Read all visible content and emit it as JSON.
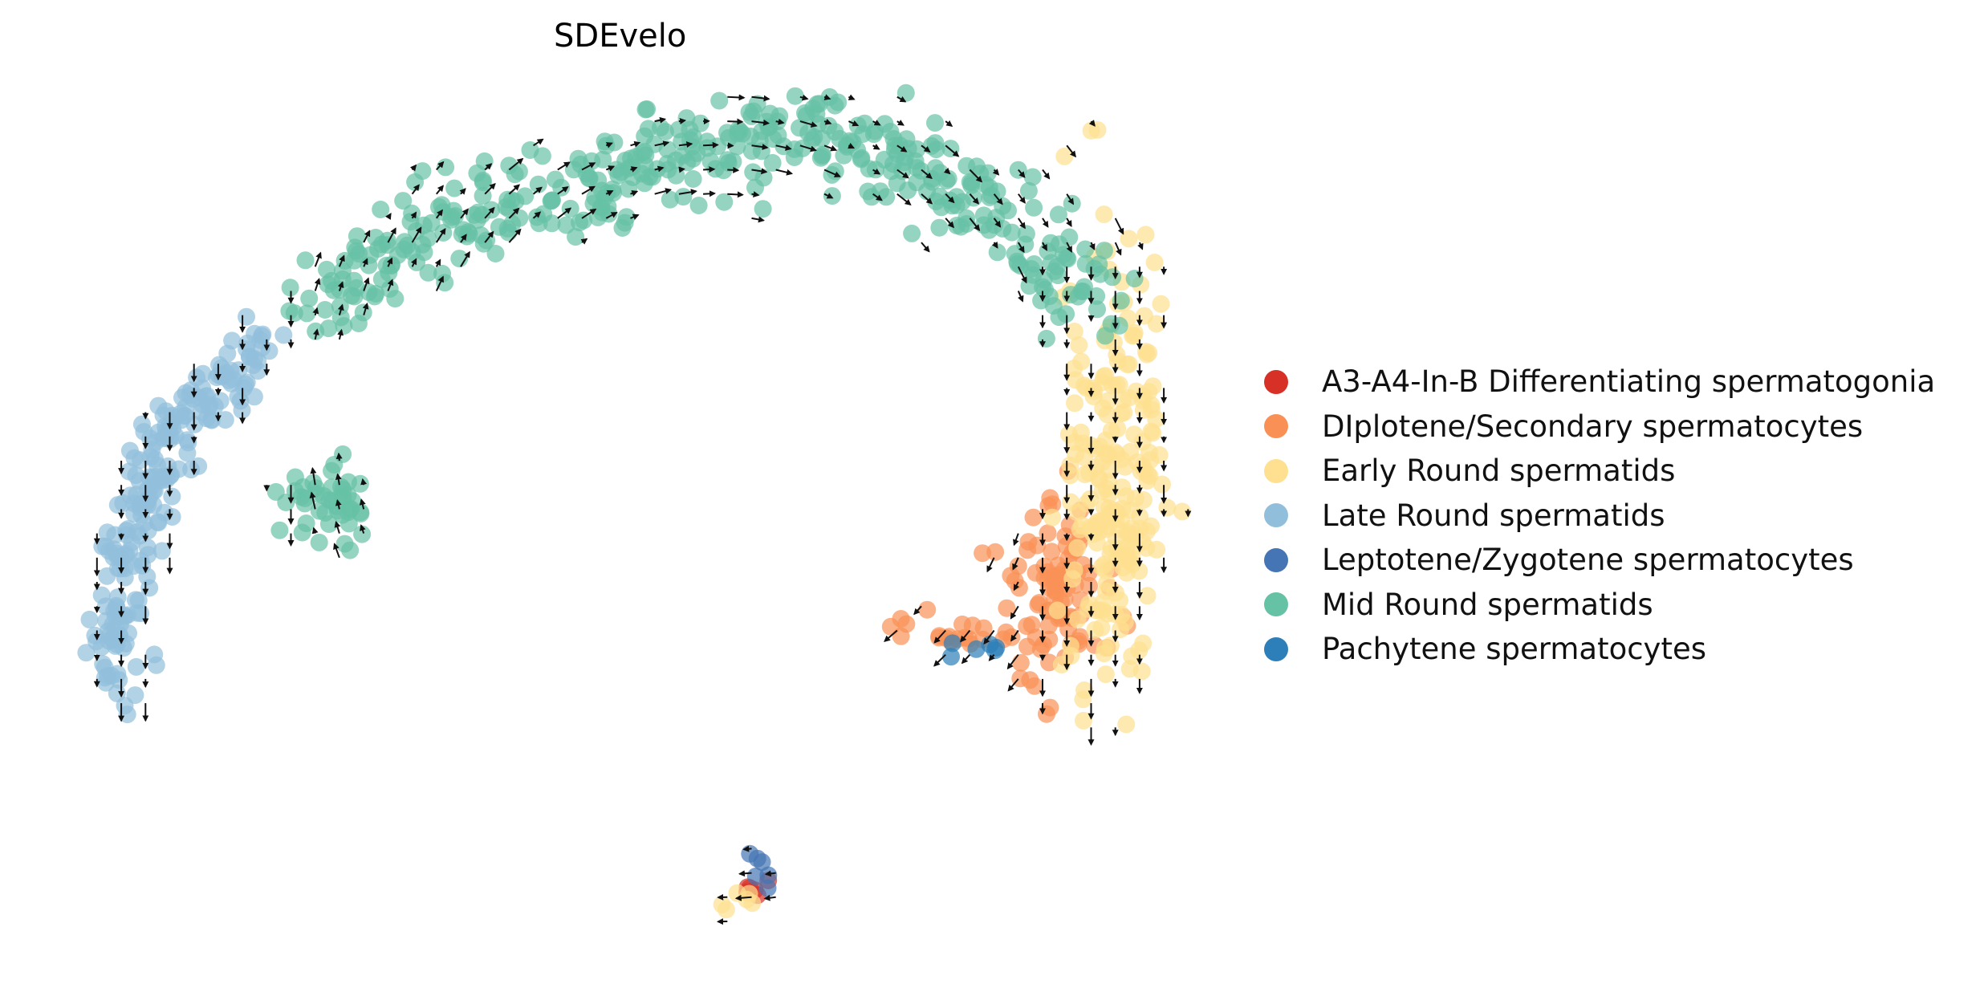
{
  "chart_data": {
    "type": "scatter",
    "title": "SDEvelo",
    "xlabel": "",
    "ylabel": "",
    "grid": false,
    "axes_visible": false,
    "overlay": "velocity arrows (black quiver grid)",
    "legend_placement": "right",
    "series": [
      {
        "name": "A3-A4-In-B Differentiating spermatogonia",
        "color": "#d73027",
        "clusters": [
          {
            "center": [
              585,
              695
            ],
            "spread": [
              6,
              8
            ],
            "n": 6
          }
        ]
      },
      {
        "name": "DIplotene/Secondary spermatocytes",
        "color": "#f99157",
        "clusters": [
          {
            "center": [
              828,
              470
            ],
            "spread": [
              22,
              40
            ],
            "n": 90
          },
          {
            "center": [
              760,
              500
            ],
            "spread": [
              28,
              8
            ],
            "n": 22
          }
        ]
      },
      {
        "name": "Early Round spermatids",
        "color": "#fee090",
        "clusters": [
          {
            "center": [
              872,
              365
            ],
            "spread": [
              20,
              85
            ],
            "n": 220
          },
          {
            "center": [
              580,
              708
            ],
            "spread": [
              8,
              8
            ],
            "n": 6
          }
        ]
      },
      {
        "name": "Late Round spermatids",
        "color": "#91bfdb",
        "clusters": [
          {
            "curve": [
              [
                205,
                270
              ],
              [
                165,
                305
              ],
              [
                130,
                345
              ],
              [
                110,
                400
              ],
              [
                98,
                470
              ],
              [
                88,
                535
              ]
            ],
            "jitter": 12,
            "n": 220
          }
        ]
      },
      {
        "name": "Leptotene/Zygotene spermatocytes",
        "color": "#4575b4",
        "clusters": [
          {
            "center": [
              595,
              685
            ],
            "spread": [
              5,
              8
            ],
            "n": 6
          }
        ]
      },
      {
        "name": "Mid Round spermatids",
        "color": "#66c2a5",
        "clusters": [
          {
            "curve": [
              [
                240,
                245
              ],
              [
                300,
                200
              ],
              [
                380,
                165
              ],
              [
                470,
                140
              ],
              [
                560,
                110
              ],
              [
                640,
                100
              ],
              [
                720,
                125
              ],
              [
                790,
                170
              ],
              [
                835,
                215
              ],
              [
                860,
                250
              ]
            ],
            "jitter": 18,
            "n": 420
          },
          {
            "center": [
              258,
              395
            ],
            "spread": [
              18,
              16
            ],
            "n": 45
          }
        ]
      },
      {
        "name": "Pachytene spermatocytes",
        "color": "#2c7fb8",
        "clusters": [
          {
            "center": [
              760,
              508
            ],
            "spread": [
              15,
              4
            ],
            "n": 6
          }
        ]
      }
    ]
  },
  "legend": {
    "items": [
      {
        "label": "A3-A4-In-B Differentiating spermatogonia",
        "color": "#d73027"
      },
      {
        "label": "DIplotene/Secondary spermatocytes",
        "color": "#f99157"
      },
      {
        "label": "Early Round spermatids",
        "color": "#fee090"
      },
      {
        "label": "Late Round spermatids",
        "color": "#91bfdb"
      },
      {
        "label": "Leptotene/Zygotene spermatocytes",
        "color": "#4575b4"
      },
      {
        "label": "Mid Round spermatids",
        "color": "#66c2a5"
      },
      {
        "label": "Pachytene spermatocytes",
        "color": "#2c7fb8"
      }
    ]
  }
}
